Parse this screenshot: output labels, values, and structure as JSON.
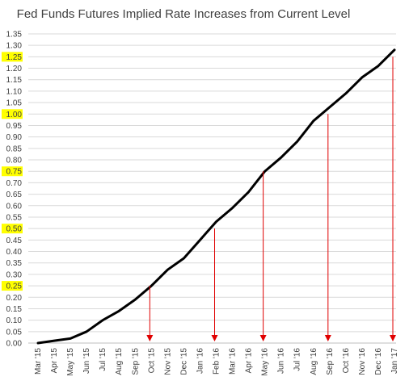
{
  "chart_data": {
    "type": "line",
    "title": "Fed Funds Futures Implied Rate Increases from Current Level",
    "xlabel": "",
    "ylabel": "",
    "ylim": [
      0,
      1.35
    ],
    "ytick_step": 0.05,
    "yticks": [
      "0.00",
      "0.05",
      "0.10",
      "0.15",
      "0.20",
      "0.25",
      "0.30",
      "0.35",
      "0.40",
      "0.45",
      "0.50",
      "0.55",
      "0.60",
      "0.65",
      "0.70",
      "0.75",
      "0.80",
      "0.85",
      "0.90",
      "0.95",
      "1.00",
      "1.05",
      "1.10",
      "1.15",
      "1.20",
      "1.25",
      "1.30",
      "1.35"
    ],
    "highlighted_yticks": [
      "0.25",
      "0.50",
      "0.75",
      "1.00",
      "1.25"
    ],
    "highlight_color": "#ffff00",
    "categories": [
      "Mar '15",
      "Apr '15",
      "May '15",
      "Jun '15",
      "Jul '15",
      "Aug '15",
      "Sep '15",
      "Oct '15",
      "Nov '15",
      "Dec '15",
      "Jan '16",
      "Feb '16",
      "Mar '16",
      "Apr '16",
      "May '16",
      "Jun '16",
      "Jul '16",
      "Aug '16",
      "Sep '16",
      "Oct '16",
      "Nov '16",
      "Dec '16",
      "Jan '17"
    ],
    "series": [
      {
        "color": "#000000",
        "values": [
          0.0,
          0.01,
          0.02,
          0.05,
          0.1,
          0.14,
          0.19,
          0.25,
          0.32,
          0.37,
          0.45,
          0.53,
          0.59,
          0.66,
          0.75,
          0.81,
          0.88,
          0.97,
          1.03,
          1.09,
          1.16,
          1.21,
          1.28
        ]
      }
    ],
    "markers": [
      {
        "category": "Oct '15",
        "value": 0.25
      },
      {
        "category": "Feb '16",
        "value": 0.5
      },
      {
        "category": "May '16",
        "value": 0.75
      },
      {
        "category": "Sep '16",
        "value": 1.0
      },
      {
        "category": "Jan '17",
        "value": 1.25
      }
    ],
    "marker_color": "#e00000",
    "grid": true,
    "legend": "none"
  }
}
